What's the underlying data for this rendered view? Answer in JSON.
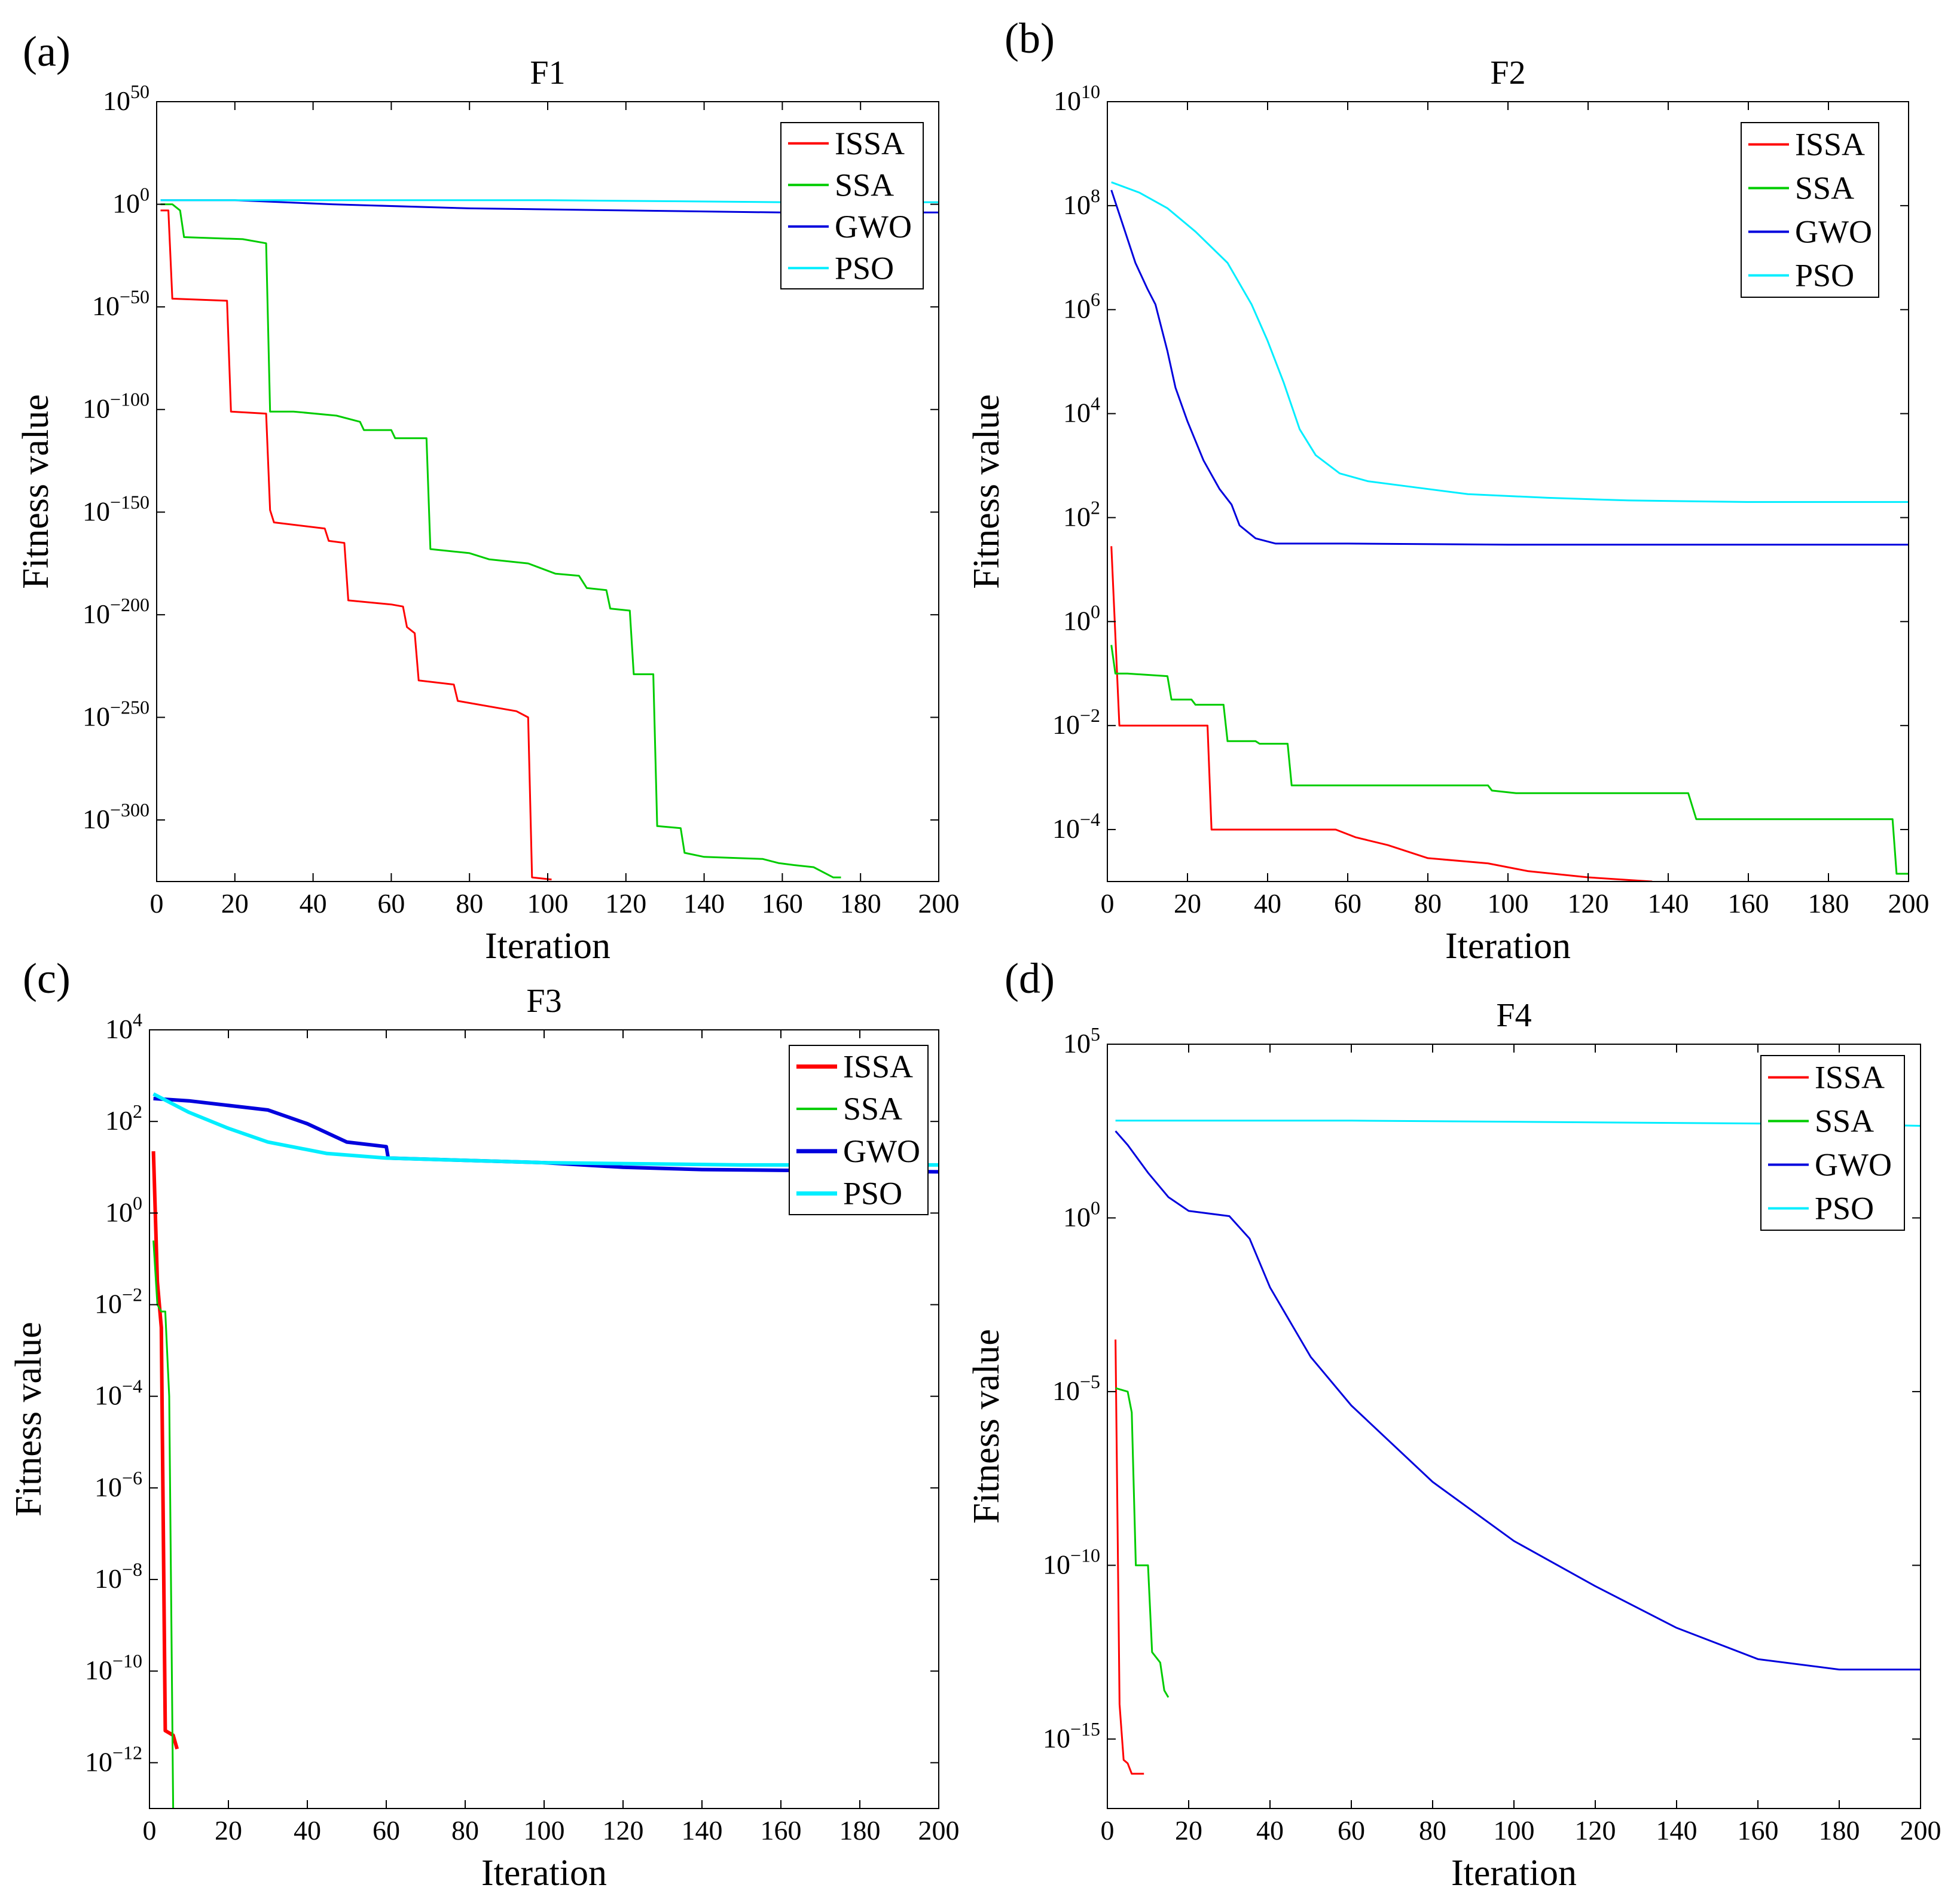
{
  "chart_data": [
    {
      "panel": "(a)",
      "type": "line",
      "title": "F1",
      "xlabel": "Iteration",
      "ylabel": "Fitness value",
      "yscale": "log",
      "xlim": [
        0,
        200
      ],
      "ylim_exp": [
        -330,
        50
      ],
      "xticks": [
        0,
        20,
        40,
        60,
        80,
        100,
        120,
        140,
        160,
        180,
        200
      ],
      "yticks_exp": [
        50,
        0,
        -50,
        -100,
        -150,
        -200,
        -250,
        -300
      ],
      "legend": "top-right",
      "series": [
        {
          "name": "ISSA",
          "color": "#ff0000",
          "width": 3,
          "points": [
            [
              1,
              -3
            ],
            [
              3,
              -3
            ],
            [
              4,
              -46
            ],
            [
              18,
              -47
            ],
            [
              19,
              -101
            ],
            [
              28,
              -102
            ],
            [
              29,
              -149
            ],
            [
              30,
              -155
            ],
            [
              43,
              -158
            ],
            [
              44,
              -164
            ],
            [
              48,
              -165
            ],
            [
              49,
              -193
            ],
            [
              60,
              -195
            ],
            [
              63,
              -196
            ],
            [
              64,
              -206
            ],
            [
              66,
              -209
            ],
            [
              67,
              -232
            ],
            [
              76,
              -234
            ],
            [
              77,
              -242
            ],
            [
              92,
              -247
            ],
            [
              95,
              -250
            ],
            [
              96,
              -328
            ],
            [
              101,
              -329
            ]
          ]
        },
        {
          "name": "SSA",
          "color": "#00cc00",
          "width": 3,
          "points": [
            [
              1,
              0
            ],
            [
              4,
              0
            ],
            [
              6,
              -3
            ],
            [
              7,
              -16
            ],
            [
              22,
              -17
            ],
            [
              28,
              -19
            ],
            [
              29,
              -101
            ],
            [
              35,
              -101
            ],
            [
              46,
              -103
            ],
            [
              52,
              -106
            ],
            [
              53,
              -110
            ],
            [
              60,
              -110
            ],
            [
              61,
              -114
            ],
            [
              69,
              -114
            ],
            [
              70,
              -168
            ],
            [
              80,
              -170
            ],
            [
              85,
              -173
            ],
            [
              95,
              -175
            ],
            [
              102,
              -180
            ],
            [
              108,
              -181
            ],
            [
              110,
              -187
            ],
            [
              115,
              -188
            ],
            [
              116,
              -197
            ],
            [
              121,
              -198
            ],
            [
              122,
              -229
            ],
            [
              127,
              -229
            ],
            [
              128,
              -303
            ],
            [
              134,
              -304
            ],
            [
              135,
              -316
            ],
            [
              140,
              -318
            ],
            [
              155,
              -319
            ],
            [
              159,
              -321
            ],
            [
              163,
              -322
            ],
            [
              168,
              -323
            ],
            [
              173,
              -328
            ],
            [
              175,
              -328
            ]
          ]
        },
        {
          "name": "GWO",
          "color": "#0000dd",
          "width": 3,
          "points": [
            [
              1,
              2
            ],
            [
              20,
              2
            ],
            [
              45,
              0
            ],
            [
              80,
              -2
            ],
            [
              120,
              -3
            ],
            [
              160,
              -4
            ],
            [
              200,
              -4
            ]
          ]
        },
        {
          "name": "PSO",
          "color": "#00eeff",
          "width": 3,
          "points": [
            [
              1,
              2
            ],
            [
              100,
              2
            ],
            [
              160,
              1
            ],
            [
              200,
              1
            ]
          ]
        }
      ]
    },
    {
      "panel": "(b)",
      "type": "line",
      "title": "F2",
      "xlabel": "Iteration",
      "ylabel": "Fitness value",
      "yscale": "log",
      "xlim": [
        0,
        200
      ],
      "ylim_exp": [
        -5,
        10
      ],
      "xticks": [
        0,
        20,
        40,
        60,
        80,
        100,
        120,
        140,
        160,
        180,
        200
      ],
      "yticks_exp": [
        10,
        8,
        6,
        4,
        2,
        0,
        -2,
        -4
      ],
      "legend": "top-right",
      "series": [
        {
          "name": "ISSA",
          "color": "#ff0000",
          "width": 3,
          "points": [
            [
              1,
              1.45
            ],
            [
              3,
              -2
            ],
            [
              25,
              -2
            ],
            [
              26,
              -4
            ],
            [
              57,
              -4
            ],
            [
              62,
              -4.15
            ],
            [
              70,
              -4.3
            ],
            [
              80,
              -4.55
            ],
            [
              95,
              -4.65
            ],
            [
              105,
              -4.8
            ],
            [
              120,
              -4.92
            ],
            [
              136,
              -5
            ]
          ]
        },
        {
          "name": "SSA",
          "color": "#00cc00",
          "width": 3,
          "points": [
            [
              1,
              -0.45
            ],
            [
              2,
              -1
            ],
            [
              5,
              -1
            ],
            [
              15,
              -1.05
            ],
            [
              16,
              -1.5
            ],
            [
              21,
              -1.5
            ],
            [
              22,
              -1.6
            ],
            [
              29,
              -1.6
            ],
            [
              30,
              -2.3
            ],
            [
              37,
              -2.3
            ],
            [
              38,
              -2.35
            ],
            [
              45,
              -2.35
            ],
            [
              46,
              -3.15
            ],
            [
              95,
              -3.15
            ],
            [
              96,
              -3.25
            ],
            [
              102,
              -3.3
            ],
            [
              145,
              -3.3
            ],
            [
              147,
              -3.8
            ],
            [
              196,
              -3.8
            ],
            [
              197,
              -4.85
            ],
            [
              200,
              -4.85
            ]
          ]
        },
        {
          "name": "GWO",
          "color": "#0000dd",
          "width": 3,
          "points": [
            [
              1,
              8.3
            ],
            [
              4,
              7.6
            ],
            [
              7,
              6.9
            ],
            [
              10,
              6.4
            ],
            [
              12,
              6.1
            ],
            [
              15,
              5.2
            ],
            [
              17,
              4.5
            ],
            [
              20,
              3.85
            ],
            [
              24,
              3.1
            ],
            [
              28,
              2.55
            ],
            [
              31,
              2.25
            ],
            [
              33,
              1.85
            ],
            [
              37,
              1.6
            ],
            [
              42,
              1.5
            ],
            [
              60,
              1.5
            ],
            [
              100,
              1.48
            ],
            [
              200,
              1.48
            ]
          ]
        },
        {
          "name": "PSO",
          "color": "#00eeff",
          "width": 3,
          "points": [
            [
              1,
              8.45
            ],
            [
              8,
              8.25
            ],
            [
              15,
              7.95
            ],
            [
              22,
              7.5
            ],
            [
              30,
              6.9
            ],
            [
              36,
              6.1
            ],
            [
              40,
              5.4
            ],
            [
              44,
              4.6
            ],
            [
              48,
              3.7
            ],
            [
              52,
              3.2
            ],
            [
              58,
              2.85
            ],
            [
              65,
              2.7
            ],
            [
              75,
              2.6
            ],
            [
              90,
              2.45
            ],
            [
              110,
              2.38
            ],
            [
              130,
              2.33
            ],
            [
              160,
              2.3
            ],
            [
              200,
              2.3
            ]
          ]
        }
      ]
    },
    {
      "panel": "(c)",
      "type": "line",
      "title": "F3",
      "xlabel": "Iteration",
      "ylabel": "Fitness value",
      "yscale": "log",
      "xlim": [
        0,
        200
      ],
      "ylim_exp": [
        -13,
        4
      ],
      "xticks": [
        0,
        20,
        40,
        60,
        80,
        100,
        120,
        140,
        160,
        180,
        200
      ],
      "yticks_exp": [
        4,
        2,
        0,
        -2,
        -4,
        -6,
        -8,
        -10,
        -12
      ],
      "legend": "top-right",
      "series": [
        {
          "name": "ISSA",
          "color": "#ff0000",
          "width": 6,
          "points": [
            [
              1,
              1.35
            ],
            [
              2,
              -1.5
            ],
            [
              3,
              -2.5
            ],
            [
              4,
              -11.3
            ],
            [
              6,
              -11.4
            ],
            [
              7,
              -11.7
            ]
          ]
        },
        {
          "name": "SSA",
          "color": "#00cc00",
          "width": 3,
          "points": [
            [
              1,
              -0.6
            ],
            [
              2,
              -2
            ],
            [
              3,
              -2.15
            ],
            [
              4,
              -2.15
            ],
            [
              5,
              -4
            ],
            [
              6,
              -13
            ]
          ]
        },
        {
          "name": "GWO",
          "color": "#0000dd",
          "width": 6,
          "points": [
            [
              1,
              2.5
            ],
            [
              10,
              2.45
            ],
            [
              20,
              2.35
            ],
            [
              30,
              2.25
            ],
            [
              40,
              1.95
            ],
            [
              50,
              1.55
            ],
            [
              60,
              1.45
            ],
            [
              60.5,
              1.2
            ],
            [
              100,
              1.1
            ],
            [
              120,
              1
            ],
            [
              140,
              0.95
            ],
            [
              200,
              0.9
            ]
          ]
        },
        {
          "name": "PSO",
          "color": "#00eeff",
          "width": 6,
          "points": [
            [
              1,
              2.6
            ],
            [
              10,
              2.2
            ],
            [
              20,
              1.85
            ],
            [
              30,
              1.55
            ],
            [
              45,
              1.3
            ],
            [
              60,
              1.2
            ],
            [
              100,
              1.1
            ],
            [
              150,
              1.05
            ],
            [
              200,
              1.05
            ]
          ]
        }
      ]
    },
    {
      "panel": "(d)",
      "type": "line",
      "title": "F4",
      "xlabel": "Iteration",
      "ylabel": "Fitness value",
      "yscale": "log",
      "xlim": [
        0,
        200
      ],
      "ylim_exp": [
        -17,
        5
      ],
      "xticks": [
        0,
        20,
        40,
        60,
        80,
        100,
        120,
        140,
        160,
        180,
        200
      ],
      "yticks_exp": [
        5,
        0,
        -5,
        -10,
        -15
      ],
      "legend": "top-right",
      "series": [
        {
          "name": "ISSA",
          "color": "#ff0000",
          "width": 3,
          "points": [
            [
              2,
              -3.5
            ],
            [
              3,
              -14
            ],
            [
              4,
              -15.6
            ],
            [
              5,
              -15.7
            ],
            [
              6,
              -16
            ],
            [
              9,
              -16
            ]
          ]
        },
        {
          "name": "SSA",
          "color": "#00cc00",
          "width": 3,
          "points": [
            [
              2,
              -4.9
            ],
            [
              5,
              -5
            ],
            [
              6,
              -5.6
            ],
            [
              7,
              -10
            ],
            [
              10,
              -10
            ],
            [
              11,
              -12.5
            ],
            [
              13,
              -12.8
            ],
            [
              14,
              -13.6
            ],
            [
              15,
              -13.8
            ]
          ]
        },
        {
          "name": "GWO",
          "color": "#0000dd",
          "width": 3,
          "points": [
            [
              2,
              2.5
            ],
            [
              5,
              2.1
            ],
            [
              10,
              1.3
            ],
            [
              15,
              0.6
            ],
            [
              20,
              0.2
            ],
            [
              30,
              0.05
            ],
            [
              35,
              -0.6
            ],
            [
              40,
              -2
            ],
            [
              50,
              -4
            ],
            [
              60,
              -5.4
            ],
            [
              80,
              -7.6
            ],
            [
              100,
              -9.3
            ],
            [
              120,
              -10.6
            ],
            [
              140,
              -11.8
            ],
            [
              160,
              -12.7
            ],
            [
              180,
              -13.0
            ],
            [
              200,
              -13.0
            ]
          ]
        },
        {
          "name": "PSO",
          "color": "#00eeff",
          "width": 3,
          "points": [
            [
              2,
              2.8
            ],
            [
              60,
              2.8
            ],
            [
              120,
              2.75
            ],
            [
              180,
              2.7
            ],
            [
              200,
              2.65
            ]
          ]
        }
      ]
    }
  ]
}
